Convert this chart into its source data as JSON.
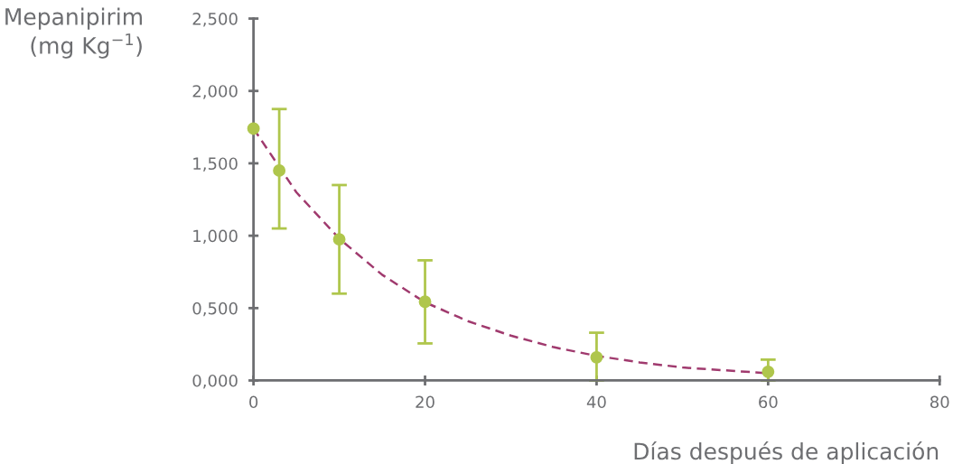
{
  "chart_data": {
    "type": "scatter",
    "xlabel": "Días después de aplicación",
    "ylabel": "Mepanipirim\n(mg Kg$^{−1}$)",
    "xlim": [
      0,
      80
    ],
    "xticks": [
      0,
      20,
      40,
      60,
      80
    ],
    "ylim": [
      0,
      2.5
    ],
    "yticks": [
      {
        "value": 0,
        "label": "0,000"
      },
      {
        "value": 0.5,
        "label": "0,500"
      },
      {
        "value": 1,
        "label": "1,000"
      },
      {
        "value": 1.5,
        "label": "1,500"
      },
      {
        "value": 2,
        "label": "2,000"
      },
      {
        "value": 2.5,
        "label": "2,500"
      }
    ],
    "grid": false,
    "marker": "circle",
    "series": [
      {
        "type": "line",
        "color": "#a03a6e",
        "line_style": "dashed",
        "marker": "none",
        "x": [
          0,
          5,
          10,
          15,
          20,
          25,
          30,
          35,
          40,
          45,
          50,
          55,
          60
        ],
        "values": [
          1.74,
          1.3,
          0.98,
          0.73,
          0.54,
          0.41,
          0.31,
          0.23,
          0.17,
          0.125,
          0.09,
          0.07,
          0.05
        ]
      },
      {
        "color": "#afc64c",
        "x": [
          0,
          3,
          10,
          20,
          40,
          60
        ],
        "values": [
          1.74,
          1.45,
          0.975,
          0.544,
          0.16,
          0.06
        ],
        "errors": [
          null,
          [
            1.05,
            1.875
          ],
          [
            0.6,
            1.35
          ],
          [
            0.256,
            0.83
          ],
          [
            0,
            0.33
          ],
          [
            0,
            0.144
          ]
        ]
      }
    ]
  }
}
